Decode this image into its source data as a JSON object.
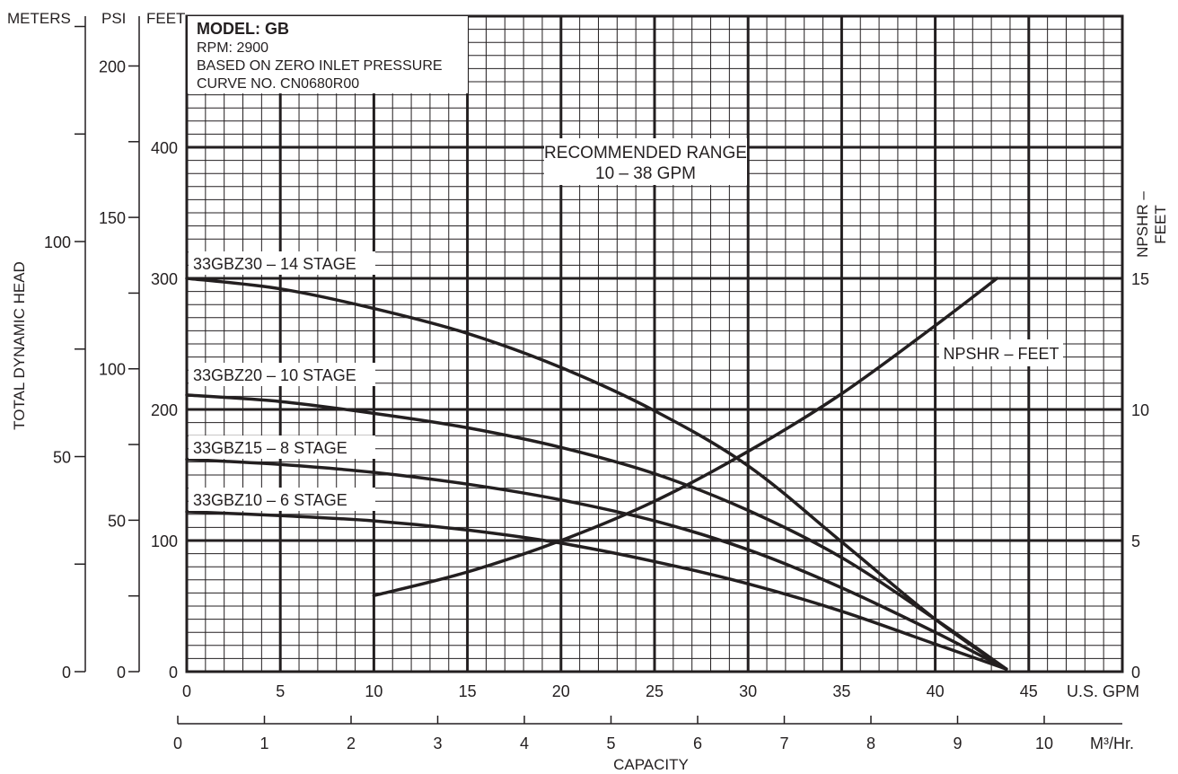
{
  "chart_data": {
    "type": "line",
    "info_box": {
      "title": "MODEL: GB",
      "lines": [
        "RPM: 2900",
        "BASED ON ZERO INLET PRESSURE",
        "CURVE NO. CN0680R00"
      ]
    },
    "annotation": {
      "line1": "RECOMMENDED RANGE",
      "line2": "10 – 38 GPM"
    },
    "axis_headers": {
      "meters": "METERS",
      "psi": "PSI",
      "feet": "FEET"
    },
    "ylabel": "TOTAL DYNAMIC HEAD",
    "right_label": {
      "line1": "NPSHR –",
      "line2": "FEET"
    },
    "x_units": "U.S. GPM",
    "x2_units": "M³/Hr.",
    "xlabel": "CAPACITY",
    "xlim": [
      0,
      50
    ],
    "ylim_feet": [
      0,
      500
    ],
    "x_ticks": [
      "0",
      "5",
      "10",
      "15",
      "20",
      "25",
      "30",
      "35",
      "40",
      "45"
    ],
    "feet_ticks": [
      "0",
      "100",
      "200",
      "300",
      "400"
    ],
    "psi_ticks": [
      "0",
      "50",
      "100",
      "150",
      "200"
    ],
    "meters_ticks": [
      "0",
      "50",
      "100"
    ],
    "npshr_ticks": [
      "0",
      "5",
      "10",
      "15"
    ],
    "m3hr_ticks": [
      "0",
      "1",
      "2",
      "3",
      "4",
      "5",
      "6",
      "7",
      "8",
      "9",
      "10"
    ],
    "series": [
      {
        "name": "33GBZ30 – 14 STAGE",
        "x": [
          0,
          5,
          10,
          15,
          20,
          25,
          30,
          35,
          40,
          43.8
        ],
        "y": [
          300,
          292,
          277,
          258,
          232,
          199,
          157,
          99,
          40,
          2
        ]
      },
      {
        "name": "33GBZ20 – 10 STAGE",
        "x": [
          0,
          5,
          10,
          15,
          20,
          25,
          30,
          35,
          40,
          43.8
        ],
        "y": [
          211,
          206,
          197,
          186,
          171,
          151,
          123,
          87,
          40,
          2
        ]
      },
      {
        "name": "33GBZ15 – 8 STAGE",
        "x": [
          0,
          5,
          10,
          15,
          20,
          25,
          30,
          35,
          40,
          43.8
        ],
        "y": [
          162,
          158,
          152,
          143,
          131,
          115,
          93,
          64,
          30,
          2
        ]
      },
      {
        "name": "33GBZ10 – 6 STAGE",
        "x": [
          0,
          5,
          10,
          15,
          20,
          25,
          30,
          35,
          40,
          43.8
        ],
        "y": [
          122,
          119,
          115,
          108,
          98,
          84,
          67,
          46,
          21,
          2
        ]
      },
      {
        "name": "NPSHR – FEET",
        "axis": "npshr",
        "x": [
          10,
          15,
          20,
          25,
          30,
          35,
          40,
          43.3
        ],
        "y": [
          2.9,
          3.8,
          5.0,
          6.5,
          8.4,
          10.6,
          13.2,
          15.0
        ]
      }
    ]
  }
}
